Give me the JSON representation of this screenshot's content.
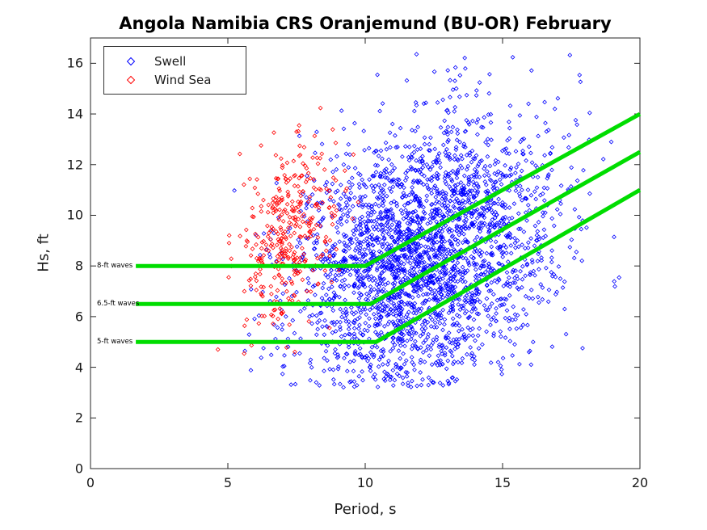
{
  "chart_data": {
    "type": "scatter",
    "title": "Angola Namibia CRS Oranjemund (BU-OR) February",
    "xlabel": "Period, s",
    "ylabel": "Hs, ft",
    "xlim": [
      0,
      20
    ],
    "ylim": [
      0,
      17
    ],
    "xticks": [
      0,
      5,
      10,
      15,
      20
    ],
    "yticks": [
      0,
      2,
      4,
      6,
      8,
      10,
      12,
      14,
      16
    ],
    "grid": false,
    "box": true,
    "axis_color": "#262626",
    "legend": {
      "position": "top-left"
    },
    "series": [
      {
        "name": "Swell",
        "marker": "diamond",
        "color": "#0000FF",
        "count": 2800,
        "seed": 1337,
        "distribution": {
          "x_mean": 12.1,
          "x_sd": 2.4,
          "y_mean": 8.3,
          "y_sd": 2.7,
          "corr": 0.3,
          "x_range": [
            5.2,
            19.6
          ],
          "y_range": [
            3.2,
            16.6
          ]
        }
      },
      {
        "name": "Wind Sea",
        "marker": "diamond",
        "color": "#FF0000",
        "count": 360,
        "seed": 2024,
        "distribution": {
          "x_mean": 7.25,
          "x_sd": 0.9,
          "y_mean": 9.3,
          "y_sd": 1.8,
          "corr": 0.35,
          "x_range": [
            4.6,
            9.9
          ],
          "y_range": [
            4.4,
            14.3
          ]
        }
      }
    ],
    "reference_lines": [
      {
        "label": "8-ft waves",
        "color": "#00DD00",
        "width": 5,
        "points": [
          [
            1.65,
            8
          ],
          [
            10.0,
            8
          ],
          [
            20,
            14
          ]
        ]
      },
      {
        "label": "6.5-ft waves",
        "color": "#00DD00",
        "width": 5,
        "points": [
          [
            1.65,
            6.5
          ],
          [
            10.2,
            6.5
          ],
          [
            20,
            12.5
          ]
        ]
      },
      {
        "label": "5-ft waves",
        "color": "#00DD00",
        "width": 5,
        "points": [
          [
            1.65,
            5
          ],
          [
            10.4,
            5
          ],
          [
            20,
            11
          ]
        ]
      }
    ]
  }
}
